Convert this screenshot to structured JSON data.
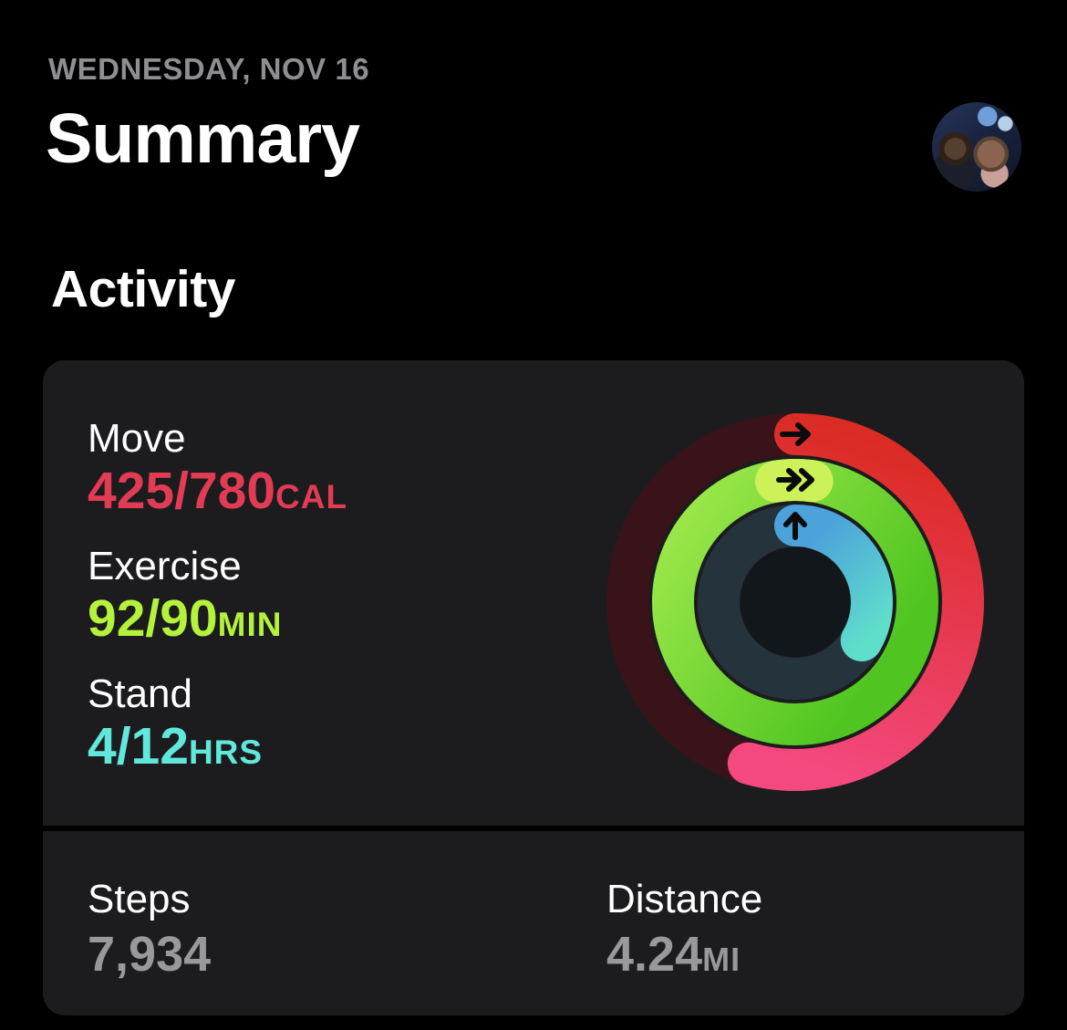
{
  "header": {
    "date": "WEDNESDAY, NOV 16",
    "title": "Summary"
  },
  "section": {
    "activity_title": "Activity"
  },
  "activity_card": {
    "metrics": [
      {
        "label": "Move",
        "value": "425/780",
        "unit": "CAL",
        "color": "#E23C55"
      },
      {
        "label": "Exercise",
        "value": "92/90",
        "unit": "MIN",
        "color": "#B4F23C"
      },
      {
        "label": "Stand",
        "value": "4/12",
        "unit": "HRS",
        "color": "#61E8DC"
      }
    ]
  },
  "stats_card": {
    "steps": {
      "label": "Steps",
      "value": "7,934",
      "unit": ""
    },
    "distance": {
      "label": "Distance",
      "value": "4.24",
      "unit": "MI"
    }
  },
  "colors": {
    "background": "#000000",
    "card": "#1C1C1E",
    "date_text": "#8E8E93",
    "move_text": "#E23C55",
    "exercise_text": "#B4F23C",
    "stand_text": "#61E8DC",
    "secondary_value_text": "#98989D"
  },
  "chart_data": {
    "type": "pie",
    "subtype": "activity-rings",
    "title": "Activity rings",
    "rings": [
      {
        "name": "Move",
        "value": 425,
        "goal": 780,
        "unit": "CAL",
        "percent": 54.5,
        "start_color": "#DB2B25",
        "end_color": "#F4497F",
        "track_color": "#3A131A",
        "arrow": "right-arrow"
      },
      {
        "name": "Exercise",
        "value": 92,
        "goal": 90,
        "unit": "MIN",
        "percent": 102.2,
        "start_color": "#9FE94C",
        "end_color": "#50C521",
        "track_color": "#2A3317",
        "overlap_color": "#CDF158",
        "arrow": "double-right-arrow"
      },
      {
        "name": "Stand",
        "value": 4,
        "goal": 12,
        "unit": "HRS",
        "percent": 33.3,
        "start_color": "#4CA2DA",
        "end_color": "#5FDECB",
        "track_color": "#25333C",
        "arrow": "up-arrow"
      }
    ],
    "center_color": "#11171B"
  }
}
